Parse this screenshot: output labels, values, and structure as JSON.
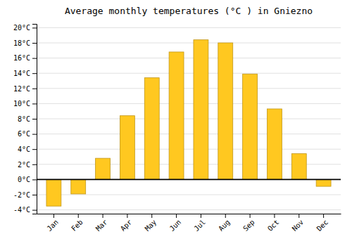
{
  "chart_data": {
    "type": "bar",
    "title": "Average monthly temperatures (°C ) in Gniezno",
    "categories": [
      "Jan",
      "Feb",
      "Mar",
      "Apr",
      "May",
      "Jun",
      "Jul",
      "Aug",
      "Sep",
      "Oct",
      "Nov",
      "Dec"
    ],
    "values": [
      -3.5,
      -1.9,
      2.8,
      8.4,
      13.4,
      16.8,
      18.4,
      18.0,
      13.9,
      9.3,
      3.4,
      -0.9
    ],
    "color": "#FFC820",
    "ylim": [
      -4.5,
      20.5
    ],
    "yticks": [
      {
        "value": -4,
        "label": "-4°C"
      },
      {
        "value": -2,
        "label": "-2°C"
      },
      {
        "value": 0,
        "label": "0°C"
      },
      {
        "value": 2,
        "label": "2°C"
      },
      {
        "value": 4,
        "label": "4°C"
      },
      {
        "value": 6,
        "label": "6°C"
      },
      {
        "value": 8,
        "label": "8°C"
      },
      {
        "value": 10,
        "label": "10°C"
      },
      {
        "value": 12,
        "label": "12°C"
      },
      {
        "value": 14,
        "label": "14°C"
      },
      {
        "value": 16,
        "label": "16°C"
      },
      {
        "value": 18,
        "label": "18°C"
      },
      {
        "value": 20,
        "label": "20°C"
      }
    ],
    "grid": true
  }
}
